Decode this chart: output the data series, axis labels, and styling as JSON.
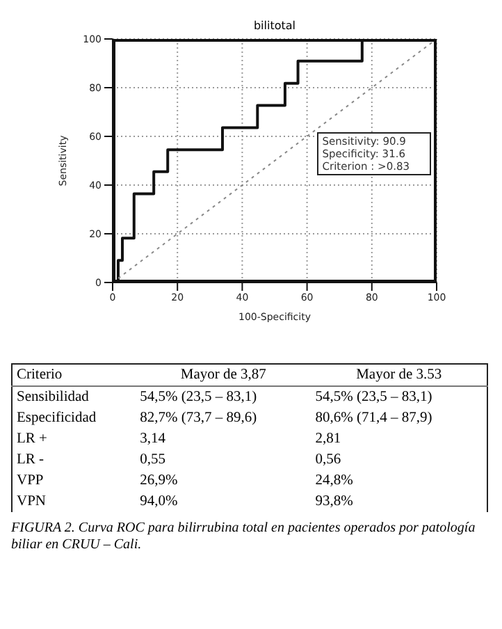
{
  "chart_data": {
    "type": "step",
    "title": "bilitotal",
    "xlabel": "100-Specificity",
    "ylabel": "Sensitivity",
    "xlim": [
      0,
      100
    ],
    "xticks": [
      0,
      20,
      40,
      60,
      80,
      100
    ],
    "ylim": [
      0,
      100
    ],
    "yticks": [
      0,
      20,
      40,
      60,
      80,
      100
    ],
    "grid": true,
    "marker": "none",
    "series": [
      {
        "color": "#111111",
        "line_style": "solid",
        "x": [
          0,
          1.7,
          3,
          6.6,
          12.7,
          17,
          33.9,
          44.7,
          53.2,
          57.2,
          77,
          100
        ],
        "values": [
          0,
          9.1,
          18.2,
          36.4,
          45.5,
          54.5,
          63.6,
          72.7,
          81.8,
          90.9,
          100,
          100
        ]
      },
      {
        "type": "line",
        "color": "#888888",
        "line_style": "dotted",
        "x": [
          0,
          100
        ],
        "values": [
          0,
          100
        ]
      }
    ],
    "annotations": [
      "Sensitivity: 90.9",
      "Specificity: 31.6",
      "Criterion : >0.83",
      "Criterio",
      "Mayor de 3,87",
      "Mayor de 3.53",
      "Sensibilidad",
      "54,5% (23,5 – 83,1)",
      "54,5% (23,5 – 83,1)",
      "Especificidad",
      "82,7% (73,7 – 89,6)",
      "80,6% (71,4 – 87,9)",
      "LR +",
      "3,14",
      "2,81",
      "LR -",
      "0,55",
      "0,56",
      "VPP",
      "26,9%",
      "24,8%",
      "VPN",
      "94,0%",
      "93,8%",
      "FIGURA 2. Curva ROC para bilirrubina total en pacientes operados por patología biliar en CRUU – Cali."
    ]
  }
}
